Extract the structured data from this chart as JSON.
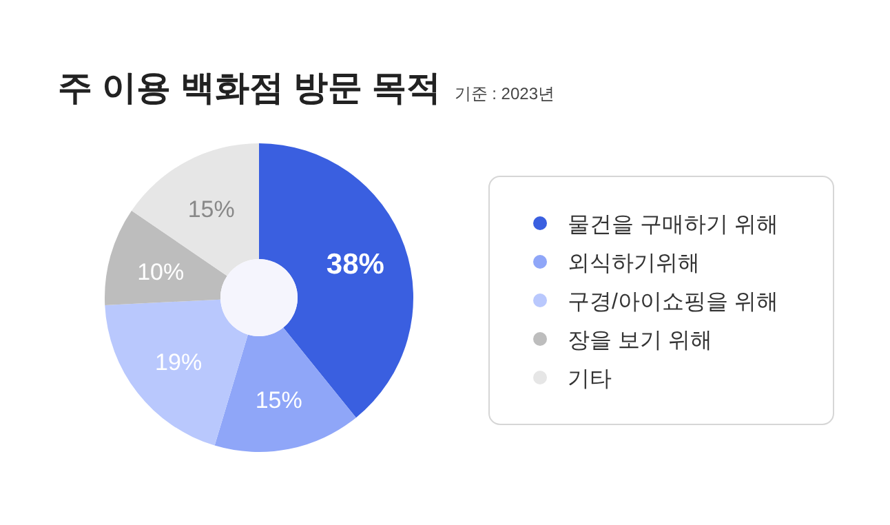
{
  "chart_data": {
    "type": "donut",
    "title": "주 이용 백화점 방문 목적",
    "subtitle": "기준 : 2023년",
    "categories": [
      "물건을 구매하기 위해",
      "외식하기위해",
      "구경/아이쇼핑을 위해",
      "장을 보기 위해",
      "기타"
    ],
    "values": [
      38,
      15,
      19,
      10,
      15
    ],
    "colors": [
      "#3a5fe0",
      "#8fa6f8",
      "#b9c8fd",
      "#bdbdbd",
      "#e6e6e6"
    ],
    "value_labels": [
      "38%",
      "15%",
      "19%",
      "10%",
      "15%"
    ],
    "legend": "right"
  }
}
